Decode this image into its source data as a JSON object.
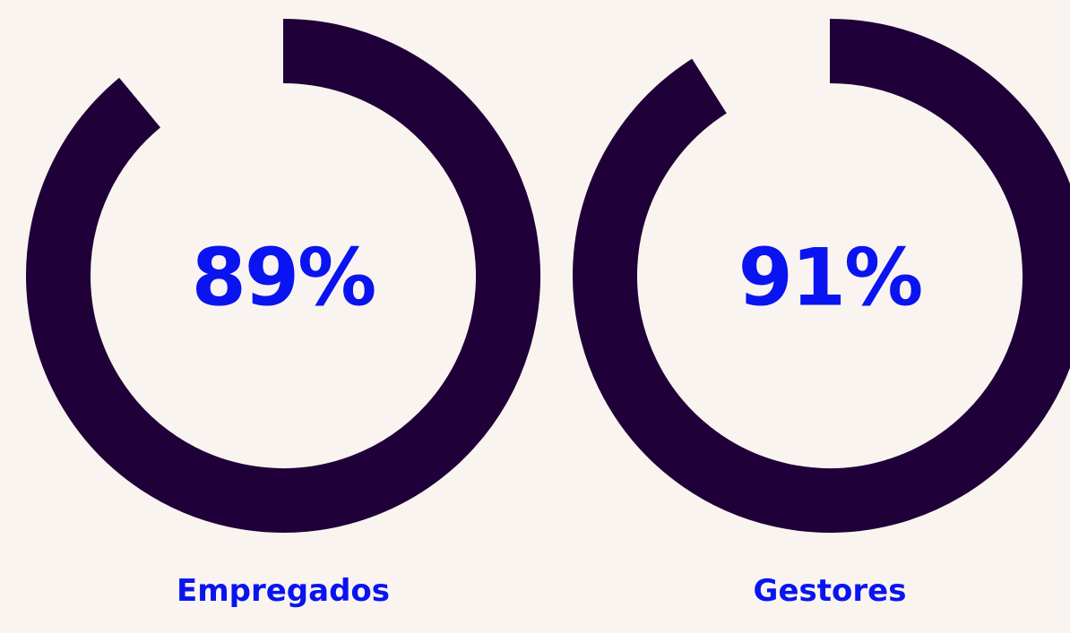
{
  "chart_data": [
    {
      "type": "donut",
      "title": "Empregados",
      "values": [
        89
      ],
      "value_labels": [
        "89%"
      ],
      "ylim": [
        0,
        100
      ],
      "color": "#200038"
    },
    {
      "type": "donut",
      "title": "Gestores",
      "values": [
        91
      ],
      "value_labels": [
        "91%"
      ],
      "ylim": [
        0,
        100
      ],
      "color": "#200038"
    }
  ]
}
